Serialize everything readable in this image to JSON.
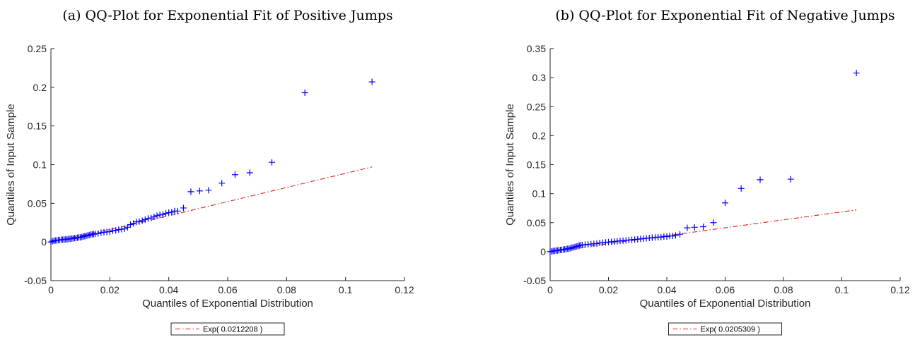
{
  "chart_data": [
    {
      "type": "scatter",
      "title": "(a) QQ-Plot for Exponential Fit of Positive Jumps",
      "xlabel": "Quantiles of Exponential Distribution",
      "ylabel": "Quantiles of Input Sample",
      "xlim": [
        0,
        0.12
      ],
      "ylim": [
        -0.05,
        0.25
      ],
      "xticks": [
        "0",
        "0.02",
        "0.04",
        "0.06",
        "0.08",
        "0.1",
        "0.12"
      ],
      "yticks": [
        "-0.05",
        "0",
        "0.05",
        "0.1",
        "0.15",
        "0.2",
        "0.25"
      ],
      "legend_position": "below",
      "grid": false,
      "series": [
        {
          "color": "#0000ff",
          "marker": "+",
          "x": [
            0.0,
            0.0005,
            0.001,
            0.0015,
            0.002,
            0.0025,
            0.003,
            0.0035,
            0.004,
            0.0045,
            0.005,
            0.0055,
            0.006,
            0.0065,
            0.007,
            0.0075,
            0.008,
            0.0085,
            0.009,
            0.0095,
            0.01,
            0.0105,
            0.011,
            0.0115,
            0.012,
            0.0125,
            0.013,
            0.0135,
            0.014,
            0.0145,
            0.015,
            0.016,
            0.017,
            0.018,
            0.019,
            0.02,
            0.021,
            0.022,
            0.023,
            0.024,
            0.025,
            0.026,
            0.027,
            0.028,
            0.029,
            0.03,
            0.031,
            0.032,
            0.033,
            0.034,
            0.035,
            0.036,
            0.037,
            0.038,
            0.039,
            0.04,
            0.041,
            0.042,
            0.043,
            0.045,
            0.0475,
            0.0505,
            0.0535,
            0.058,
            0.0625,
            0.0675,
            0.075,
            0.0862,
            0.109
          ],
          "y": [
            0.0,
            0.001,
            0.0015,
            0.002,
            0.002,
            0.0025,
            0.0025,
            0.003,
            0.003,
            0.003,
            0.0035,
            0.0035,
            0.004,
            0.004,
            0.0045,
            0.0045,
            0.005,
            0.005,
            0.0055,
            0.006,
            0.006,
            0.0065,
            0.007,
            0.0075,
            0.008,
            0.0085,
            0.009,
            0.0095,
            0.01,
            0.01,
            0.0105,
            0.011,
            0.012,
            0.0125,
            0.013,
            0.0135,
            0.0145,
            0.015,
            0.016,
            0.0165,
            0.017,
            0.019,
            0.0225,
            0.024,
            0.026,
            0.0265,
            0.0275,
            0.029,
            0.0305,
            0.031,
            0.0325,
            0.034,
            0.035,
            0.0355,
            0.037,
            0.038,
            0.0385,
            0.04,
            0.04,
            0.044,
            0.065,
            0.066,
            0.067,
            0.076,
            0.087,
            0.0895,
            0.103,
            0.193,
            0.207
          ]
        },
        {
          "name": "Exp( 0.0212208 )",
          "type": "line",
          "color": "#e0201a",
          "x": [
            0,
            0.027,
            0.109
          ],
          "y": [
            0,
            0.022,
            0.097
          ]
        }
      ]
    },
    {
      "type": "scatter",
      "title": "(b) QQ-Plot for Exponential Fit of Negative Jumps",
      "xlabel": "Quantiles of Exponential Distribution",
      "ylabel": "Quantiles of Input Sample",
      "xlim": [
        0,
        0.12
      ],
      "ylim": [
        -0.05,
        0.35
      ],
      "xticks": [
        "0",
        "0.02",
        "0.04",
        "0.06",
        "0.08",
        "0.1",
        "0.12"
      ],
      "yticks": [
        "-0.05",
        "0",
        "0.05",
        "0.1",
        "0.15",
        "0.2",
        "0.25",
        "0.3",
        "0.35"
      ],
      "legend_position": "below",
      "grid": false,
      "series": [
        {
          "color": "#0000ff",
          "marker": "+",
          "x": [
            0.0,
            0.0005,
            0.001,
            0.0015,
            0.002,
            0.0025,
            0.003,
            0.0035,
            0.004,
            0.0045,
            0.005,
            0.0055,
            0.006,
            0.0065,
            0.007,
            0.0075,
            0.008,
            0.0085,
            0.009,
            0.0095,
            0.01,
            0.0105,
            0.011,
            0.012,
            0.013,
            0.014,
            0.015,
            0.016,
            0.017,
            0.018,
            0.019,
            0.02,
            0.021,
            0.022,
            0.023,
            0.024,
            0.025,
            0.026,
            0.027,
            0.028,
            0.029,
            0.03,
            0.031,
            0.032,
            0.033,
            0.034,
            0.035,
            0.036,
            0.037,
            0.038,
            0.039,
            0.04,
            0.041,
            0.042,
            0.043,
            0.0445,
            0.047,
            0.0495,
            0.0525,
            0.056,
            0.06,
            0.0655,
            0.072,
            0.0825,
            0.105
          ],
          "y": [
            0.0,
            0.0005,
            0.001,
            0.0015,
            0.002,
            0.002,
            0.0025,
            0.003,
            0.003,
            0.0035,
            0.004,
            0.0045,
            0.005,
            0.005,
            0.006,
            0.007,
            0.0075,
            0.008,
            0.009,
            0.0095,
            0.0105,
            0.011,
            0.0115,
            0.012,
            0.0125,
            0.013,
            0.0135,
            0.014,
            0.015,
            0.0155,
            0.016,
            0.0165,
            0.017,
            0.0175,
            0.018,
            0.0185,
            0.019,
            0.0195,
            0.02,
            0.0205,
            0.021,
            0.0215,
            0.022,
            0.0225,
            0.023,
            0.0235,
            0.024,
            0.0245,
            0.025,
            0.025,
            0.026,
            0.026,
            0.027,
            0.027,
            0.028,
            0.03,
            0.041,
            0.042,
            0.043,
            0.05,
            0.084,
            0.109,
            0.124,
            0.125,
            0.308
          ]
        },
        {
          "name": "Exp( 0.0205309 )",
          "type": "line",
          "color": "#e0201a",
          "x": [
            0,
            0.105
          ],
          "y": [
            0,
            0.072
          ]
        }
      ]
    }
  ]
}
